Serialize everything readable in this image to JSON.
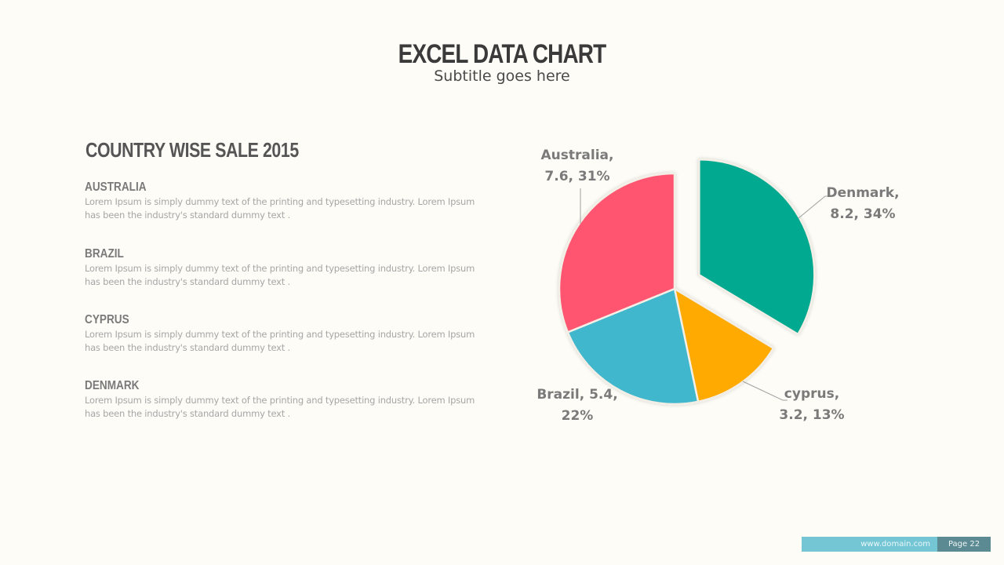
{
  "header": {
    "title": "EXCEL DATA CHART",
    "subtitle": "Subtitle goes here"
  },
  "content": {
    "section_title": "COUNTRY WISE SALE 2015",
    "items": [
      {
        "heading": "AUSTRALIA",
        "line1": "Lorem Ipsum is simply dummy text of the printing and typesetting industry. Lorem Ipsum",
        "line2": "has been the industry's standard dummy text ."
      },
      {
        "heading": "BRAZIL",
        "line1": "Lorem Ipsum is simply dummy text of the printing and typesetting industry. Lorem Ipsum",
        "line2": "has been the industry's standard dummy text ."
      },
      {
        "heading": "CYPRUS",
        "line1": "Lorem Ipsum is simply dummy text of the printing and typesetting industry. Lorem Ipsum",
        "line2": "has been the industry's standard dummy text ."
      },
      {
        "heading": "DENMARK",
        "line1": "Lorem Ipsum is simply dummy text of the printing and typesetting industry. Lorem Ipsum",
        "line2": "has been the industry's standard dummy text ."
      }
    ]
  },
  "chart_labels": {
    "australia": {
      "l1": "Australia,",
      "l2": "7.6, 31%"
    },
    "denmark": {
      "l1": "Denmark,",
      "l2": "8.2, 34%"
    },
    "cyprus": {
      "l1": "cyprus,",
      "l2": "3.2, 13%"
    },
    "brazil": {
      "l1": "Brazil,  5.4,",
      "l2": "22%"
    }
  },
  "chart_data": {
    "type": "pie",
    "title": "Country Wise Sale 2015",
    "categories": [
      "Denmark",
      "cyprus",
      "Brazil",
      "Australia"
    ],
    "values": [
      8.2,
      3.2,
      5.4,
      7.6
    ],
    "percentages": [
      34,
      13,
      22,
      31
    ],
    "colors": [
      "#00a98f",
      "#ffaa00",
      "#3fb7cc",
      "#ff5470"
    ],
    "exploded": [
      "Denmark"
    ],
    "start_angle": "12 o'clock, clockwise",
    "data_labels": [
      "Denmark, 8.2, 34%",
      "cyprus, 3.2, 13%",
      "Brazil, 5.4, 22%",
      "Australia, 7.6, 31%"
    ],
    "legend": "none"
  },
  "footer": {
    "url": "www.domain.com",
    "page": "Page 22"
  }
}
